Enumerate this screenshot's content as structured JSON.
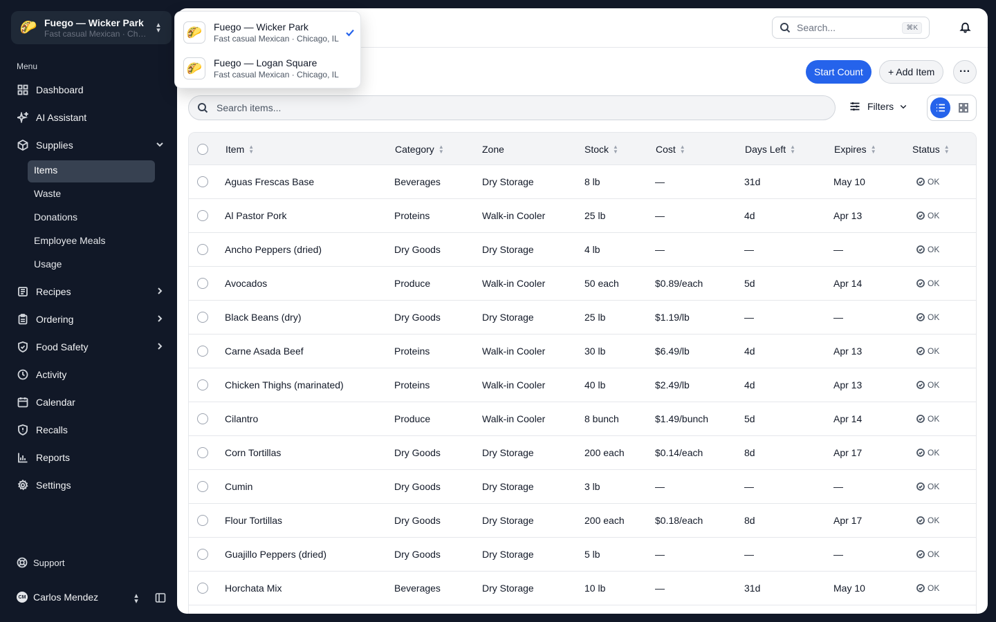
{
  "org": {
    "logo": "🌮",
    "name": "Fuego — Wicker Park",
    "subtitle": "Fast casual Mexican · Chicago, IL"
  },
  "sidebar": {
    "menu_label": "Menu",
    "items": [
      {
        "label": "Dashboard",
        "icon": "dashboard-icon"
      },
      {
        "label": "AI Assistant",
        "icon": "sparkles-icon"
      },
      {
        "label": "Supplies",
        "icon": "box-icon",
        "expanded": true
      },
      {
        "label": "Recipes",
        "icon": "book-icon"
      },
      {
        "label": "Ordering",
        "icon": "clipboard-icon"
      },
      {
        "label": "Food Safety",
        "icon": "shield-icon"
      },
      {
        "label": "Activity",
        "icon": "clock-icon"
      },
      {
        "label": "Calendar",
        "icon": "calendar-icon"
      },
      {
        "label": "Recalls",
        "icon": "shield-alert-icon"
      },
      {
        "label": "Reports",
        "icon": "chart-icon"
      },
      {
        "label": "Settings",
        "icon": "gear-icon"
      }
    ],
    "sub_items": [
      "Items",
      "Waste",
      "Donations",
      "Employee Meals",
      "Usage"
    ],
    "support_label": "Support",
    "user": {
      "initials": "CM",
      "name": "Carlos Mendez"
    }
  },
  "header": {
    "search_placeholder": "Search...",
    "search_shortcut": "⌘K"
  },
  "toolbar": {
    "start_count": "Start Count",
    "add_item": "+ Add Item",
    "more": "···",
    "search_items_placeholder": "Search items...",
    "filters": "Filters"
  },
  "table": {
    "columns": [
      "Item",
      "Category",
      "Zone",
      "Stock",
      "Cost",
      "Days Left",
      "Expires",
      "Status"
    ],
    "rows": [
      {
        "item": "Aguas Frescas Base",
        "category": "Beverages",
        "zone": "Dry Storage",
        "stock": "8 lb",
        "cost": "—",
        "days_left": "31d",
        "expires": "May 10",
        "status": "OK"
      },
      {
        "item": "Al Pastor Pork",
        "category": "Proteins",
        "zone": "Walk-in Cooler",
        "stock": "25 lb",
        "cost": "—",
        "days_left": "4d",
        "expires": "Apr 13",
        "status": "OK"
      },
      {
        "item": "Ancho Peppers (dried)",
        "category": "Dry Goods",
        "zone": "Dry Storage",
        "stock": "4 lb",
        "cost": "—",
        "days_left": "—",
        "expires": "—",
        "status": "OK"
      },
      {
        "item": "Avocados",
        "category": "Produce",
        "zone": "Walk-in Cooler",
        "stock": "50 each",
        "cost": "$0.89/each",
        "days_left": "5d",
        "expires": "Apr 14",
        "status": "OK"
      },
      {
        "item": "Black Beans (dry)",
        "category": "Dry Goods",
        "zone": "Dry Storage",
        "stock": "25 lb",
        "cost": "$1.19/lb",
        "days_left": "—",
        "expires": "—",
        "status": "OK"
      },
      {
        "item": "Carne Asada Beef",
        "category": "Proteins",
        "zone": "Walk-in Cooler",
        "stock": "30 lb",
        "cost": "$6.49/lb",
        "days_left": "4d",
        "expires": "Apr 13",
        "status": "OK"
      },
      {
        "item": "Chicken Thighs (marinated)",
        "category": "Proteins",
        "zone": "Walk-in Cooler",
        "stock": "40 lb",
        "cost": "$2.49/lb",
        "days_left": "4d",
        "expires": "Apr 13",
        "status": "OK"
      },
      {
        "item": "Cilantro",
        "category": "Produce",
        "zone": "Walk-in Cooler",
        "stock": "8 bunch",
        "cost": "$1.49/bunch",
        "days_left": "5d",
        "expires": "Apr 14",
        "status": "OK"
      },
      {
        "item": "Corn Tortillas",
        "category": "Dry Goods",
        "zone": "Dry Storage",
        "stock": "200 each",
        "cost": "$0.14/each",
        "days_left": "8d",
        "expires": "Apr 17",
        "status": "OK"
      },
      {
        "item": "Cumin",
        "category": "Dry Goods",
        "zone": "Dry Storage",
        "stock": "3 lb",
        "cost": "—",
        "days_left": "—",
        "expires": "—",
        "status": "OK"
      },
      {
        "item": "Flour Tortillas",
        "category": "Dry Goods",
        "zone": "Dry Storage",
        "stock": "200 each",
        "cost": "$0.18/each",
        "days_left": "8d",
        "expires": "Apr 17",
        "status": "OK"
      },
      {
        "item": "Guajillo Peppers (dried)",
        "category": "Dry Goods",
        "zone": "Dry Storage",
        "stock": "5 lb",
        "cost": "—",
        "days_left": "—",
        "expires": "—",
        "status": "OK"
      },
      {
        "item": "Horchata Mix",
        "category": "Beverages",
        "zone": "Dry Storage",
        "stock": "10 lb",
        "cost": "—",
        "days_left": "31d",
        "expires": "May 10",
        "status": "OK"
      }
    ]
  },
  "location_dropdown": {
    "options": [
      {
        "name": "Fuego — Wicker Park",
        "subtitle": "Fast casual Mexican · Chicago, IL",
        "selected": true
      },
      {
        "name": "Fuego — Logan Square",
        "subtitle": "Fast casual Mexican · Chicago, IL",
        "selected": false
      }
    ]
  },
  "colors": {
    "accent": "#2563eb",
    "sidebar_bg": "#111827"
  }
}
